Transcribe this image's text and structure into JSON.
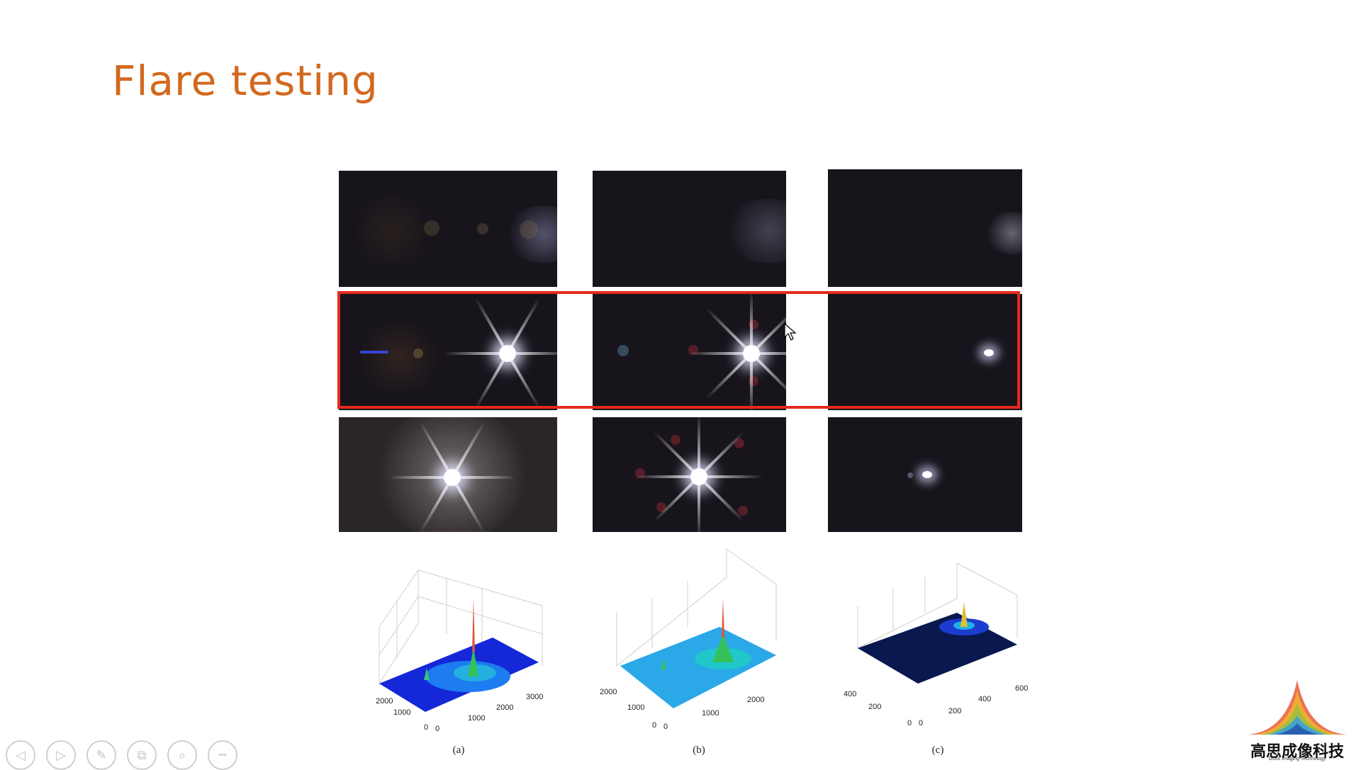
{
  "slide": {
    "title": "Flare testing"
  },
  "figure": {
    "captions": [
      "(a)",
      "(b)",
      "(c)"
    ],
    "plots": [
      {
        "ticks_left": [
          "2000",
          "1000",
          "0"
        ],
        "ticks_right": [
          "0",
          "1000",
          "2000",
          "3000"
        ]
      },
      {
        "ticks_left": [
          "2000",
          "1000",
          "0"
        ],
        "ticks_right": [
          "0",
          "1000",
          "2000"
        ]
      },
      {
        "ticks_left": [
          "400",
          "200",
          "0"
        ],
        "ticks_right": [
          "0",
          "200",
          "400",
          "600"
        ]
      }
    ]
  },
  "toolbar": {
    "buttons": [
      {
        "name": "previous-button",
        "icon": "triangle-left-icon",
        "glyph": "◁"
      },
      {
        "name": "next-button",
        "icon": "triangle-right-icon",
        "glyph": "▷"
      },
      {
        "name": "pen-button",
        "icon": "pen-icon",
        "glyph": "✎"
      },
      {
        "name": "slides-button",
        "icon": "slides-grid-icon",
        "glyph": "⧉"
      },
      {
        "name": "zoom-button",
        "icon": "magnifier-icon",
        "glyph": "⌕"
      },
      {
        "name": "more-button",
        "icon": "more-icon",
        "glyph": "•••"
      }
    ]
  },
  "logo": {
    "chinese_text": "高思成像科技",
    "english_text": "Goss Imaging Technology"
  },
  "colors": {
    "title": "#d2691e",
    "highlight_box": "#e32a1c"
  }
}
